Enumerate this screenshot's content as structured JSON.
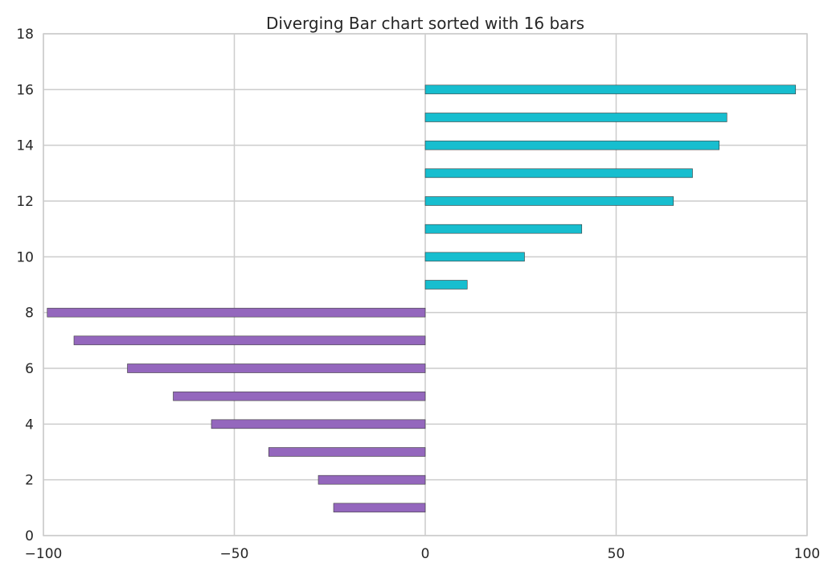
{
  "chart_data": {
    "type": "bar",
    "orientation": "horizontal",
    "title": "Diverging Bar chart sorted with 16 bars",
    "xlabel": "",
    "ylabel": "",
    "xlim": [
      -100,
      100
    ],
    "ylim": [
      0,
      18
    ],
    "xticks": [
      -100,
      -50,
      0,
      50,
      100
    ],
    "xtick_labels": [
      "−100",
      "−50",
      "0",
      "50",
      "100"
    ],
    "yticks": [
      0,
      2,
      4,
      6,
      8,
      10,
      12,
      14,
      16,
      18
    ],
    "ytick_labels": [
      "0",
      "2",
      "4",
      "6",
      "8",
      "10",
      "12",
      "14",
      "16",
      "18"
    ],
    "grid": true,
    "positions": [
      1,
      2,
      3,
      4,
      5,
      6,
      7,
      8,
      9,
      10,
      11,
      12,
      13,
      14,
      15,
      16
    ],
    "values": [
      -24,
      -28,
      -41,
      -56,
      -66,
      -78,
      -92,
      -99,
      11,
      26,
      41,
      65,
      70,
      77,
      79,
      97
    ],
    "colors": {
      "negative": "#9467bd",
      "positive": "#17becf"
    }
  }
}
